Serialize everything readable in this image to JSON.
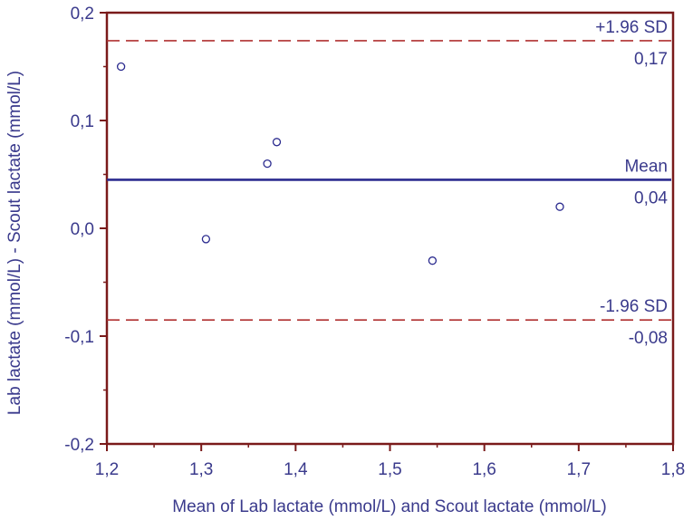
{
  "chart_data": {
    "type": "scatter",
    "title": "",
    "xlabel": "Mean of Lab lactate (mmol/L) and Scout lactate (mmol/L)",
    "ylabel": "Lab lactate (mmol/L) - Scout lactate (mmol/L)",
    "xlim": [
      1.2,
      1.8
    ],
    "ylim": [
      -0.2,
      0.2
    ],
    "xticks": [
      1.2,
      1.3,
      1.4,
      1.5,
      1.6,
      1.7,
      1.8
    ],
    "xtick_labels": [
      "1,2",
      "1,3",
      "1,4",
      "1,5",
      "1,6",
      "1,7",
      "1,8"
    ],
    "yticks": [
      0.2,
      0.1,
      0.0,
      -0.1,
      -0.2
    ],
    "ytick_labels": [
      "0,2",
      "0,1",
      "0,0",
      "-0,1",
      "-0,2"
    ],
    "grid": false,
    "points": [
      {
        "x": 1.215,
        "y": 0.15
      },
      {
        "x": 1.305,
        "y": -0.01
      },
      {
        "x": 1.37,
        "y": 0.06
      },
      {
        "x": 1.38,
        "y": 0.08
      },
      {
        "x": 1.545,
        "y": -0.03
      },
      {
        "x": 1.68,
        "y": 0.02
      }
    ],
    "reference_lines": [
      {
        "name": "+1.96 SD",
        "value": 0.174,
        "value_label": "0,17",
        "style": "dashed"
      },
      {
        "name": "Mean",
        "value": 0.045,
        "value_label": "0,04",
        "style": "solid"
      },
      {
        "name": "-1.96 SD",
        "value": -0.085,
        "value_label": "-0,08",
        "style": "dashed"
      }
    ],
    "colors": {
      "frame": "#7a1a1a",
      "text": "#3a3a8c",
      "mean_line": "#2b2b8f",
      "sd_line": "#b03030",
      "marker": "#2b2b8f"
    }
  }
}
